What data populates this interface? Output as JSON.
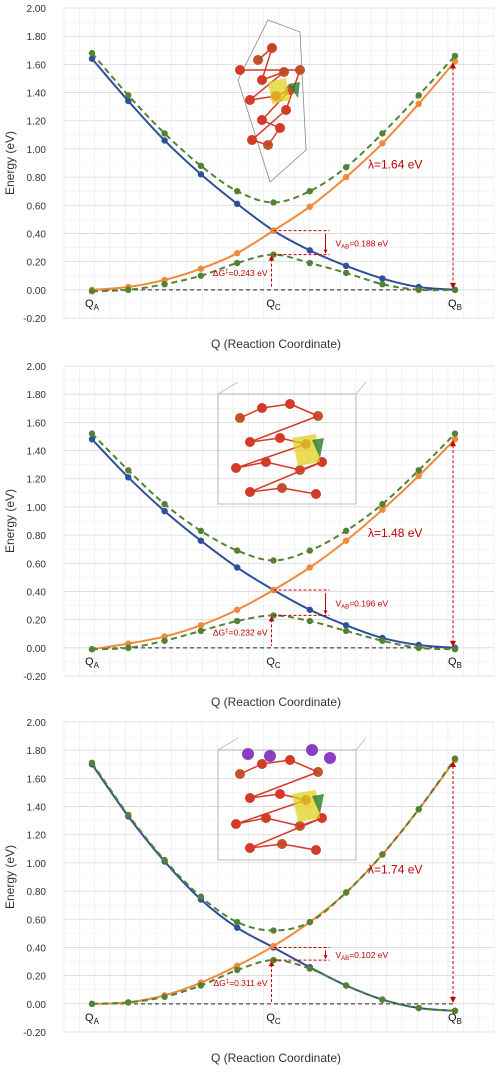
{
  "colors": {
    "blue": "#2f4f9a",
    "orange": "#f08a3a",
    "green": "#548235",
    "annot": "#c00000",
    "grid": "#e6e6e6"
  },
  "chart_data": [
    {
      "type": "line",
      "xlabel": "Q (Reaction Coordinate)",
      "ylabel": "Energy (eV)",
      "ylim": [
        -0.2,
        2.0
      ],
      "yticks": [
        "-0.20",
        "0.00",
        "0.20",
        "0.40",
        "0.60",
        "0.80",
        "1.00",
        "1.20",
        "1.40",
        "1.60",
        "1.80",
        "2.00"
      ],
      "x": [
        0,
        1,
        2,
        3,
        4,
        5,
        6,
        7,
        8,
        9,
        10
      ],
      "q_labels": [
        {
          "pos": 0,
          "main": "Q",
          "sub": "A"
        },
        {
          "pos": 5,
          "main": "Q",
          "sub": "C"
        },
        {
          "pos": 10,
          "main": "Q",
          "sub": "B"
        }
      ],
      "series": [
        {
          "values": [
            1.64,
            1.34,
            1.06,
            0.82,
            0.61,
            0.42,
            0.28,
            0.17,
            0.08,
            0.02,
            0.0
          ]
        },
        {
          "values": [
            0.0,
            0.02,
            0.07,
            0.15,
            0.26,
            0.42,
            0.59,
            0.8,
            1.04,
            1.32,
            1.62
          ]
        },
        {
          "values": [
            1.68,
            1.38,
            1.11,
            0.88,
            0.7,
            0.62,
            0.7,
            0.87,
            1.11,
            1.38,
            1.66
          ]
        },
        {
          "values": [
            -0.01,
            0.0,
            0.04,
            0.1,
            0.19,
            0.25,
            0.19,
            0.12,
            0.04,
            0.0,
            0.0
          ]
        }
      ],
      "annotations": {
        "lambda": "λ=1.64 eV",
        "vab_main": "V",
        "vab_sub": "AB",
        "vab_val": "=0.188 eV",
        "dg_pre": "ΔG",
        "dg_sup": "‡",
        "dg_val": "=0.243 eV",
        "vab_top": 0.42,
        "vab_bottom": 0.25
      }
    },
    {
      "type": "line",
      "xlabel": "Q (Reaction Coordinate)",
      "ylabel": "Energy (eV)",
      "ylim": [
        -0.2,
        2.0
      ],
      "yticks": [
        "-0.20",
        "0.00",
        "0.20",
        "0.40",
        "0.60",
        "0.80",
        "1.00",
        "1.20",
        "1.40",
        "1.60",
        "1.80",
        "2.00"
      ],
      "x": [
        0,
        1,
        2,
        3,
        4,
        5,
        6,
        7,
        8,
        9,
        10
      ],
      "q_labels": [
        {
          "pos": 0,
          "main": "Q",
          "sub": "A"
        },
        {
          "pos": 5,
          "main": "Q",
          "sub": "C"
        },
        {
          "pos": 10,
          "main": "Q",
          "sub": "B"
        }
      ],
      "series": [
        {
          "values": [
            1.48,
            1.21,
            0.97,
            0.76,
            0.57,
            0.41,
            0.27,
            0.16,
            0.07,
            0.02,
            0.0
          ]
        },
        {
          "values": [
            -0.01,
            0.03,
            0.08,
            0.16,
            0.27,
            0.41,
            0.57,
            0.76,
            0.98,
            1.22,
            1.48
          ]
        },
        {
          "values": [
            1.52,
            1.26,
            1.02,
            0.83,
            0.69,
            0.62,
            0.69,
            0.83,
            1.02,
            1.26,
            1.52
          ]
        },
        {
          "values": [
            -0.01,
            0.0,
            0.05,
            0.12,
            0.19,
            0.23,
            0.19,
            0.12,
            0.05,
            0.0,
            -0.01
          ]
        }
      ],
      "annotations": {
        "lambda": "λ=1.48 eV",
        "vab_main": "V",
        "vab_sub": "AB",
        "vab_val": "=0.196 eV",
        "dg_pre": "ΔG",
        "dg_sup": "‡",
        "dg_val": "=0.232 eV",
        "vab_top": 0.41,
        "vab_bottom": 0.23
      }
    },
    {
      "type": "line",
      "xlabel": "Q (Reaction Coordinate)",
      "ylabel": "Energy (eV)",
      "ylim": [
        -0.2,
        2.0
      ],
      "yticks": [
        "-0.20",
        "0.00",
        "0.20",
        "0.40",
        "0.60",
        "0.80",
        "1.00",
        "1.20",
        "1.40",
        "1.60",
        "1.80",
        "2.00"
      ],
      "x": [
        0,
        1,
        2,
        3,
        4,
        5,
        6,
        7,
        8,
        9,
        10
      ],
      "q_labels": [
        {
          "pos": 0,
          "main": "Q",
          "sub": "A"
        },
        {
          "pos": 5,
          "main": "Q",
          "sub": "C"
        },
        {
          "pos": 10,
          "main": "Q",
          "sub": "B"
        }
      ],
      "series": [
        {
          "values": [
            1.7,
            1.33,
            1.01,
            0.74,
            0.54,
            0.4,
            0.26,
            0.13,
            0.03,
            -0.03,
            -0.05
          ]
        },
        {
          "values": [
            0.0,
            0.01,
            0.06,
            0.15,
            0.27,
            0.41,
            0.58,
            0.79,
            1.06,
            1.38,
            1.73
          ]
        },
        {
          "values": [
            1.71,
            1.34,
            1.02,
            0.76,
            0.58,
            0.52,
            0.58,
            0.79,
            1.06,
            1.38,
            1.74
          ]
        },
        {
          "values": [
            0.0,
            0.01,
            0.05,
            0.13,
            0.24,
            0.31,
            0.25,
            0.13,
            0.03,
            -0.03,
            -0.05
          ]
        }
      ],
      "annotations": {
        "lambda": "λ=1.74 eV",
        "vab_main": "V",
        "vab_sub": "AB",
        "vab_val": "=0.102 eV",
        "dg_pre": "ΔG",
        "dg_sup": "‡",
        "dg_val": "=0.311 eV",
        "vab_top": 0.4,
        "vab_bottom": 0.31
      }
    }
  ]
}
